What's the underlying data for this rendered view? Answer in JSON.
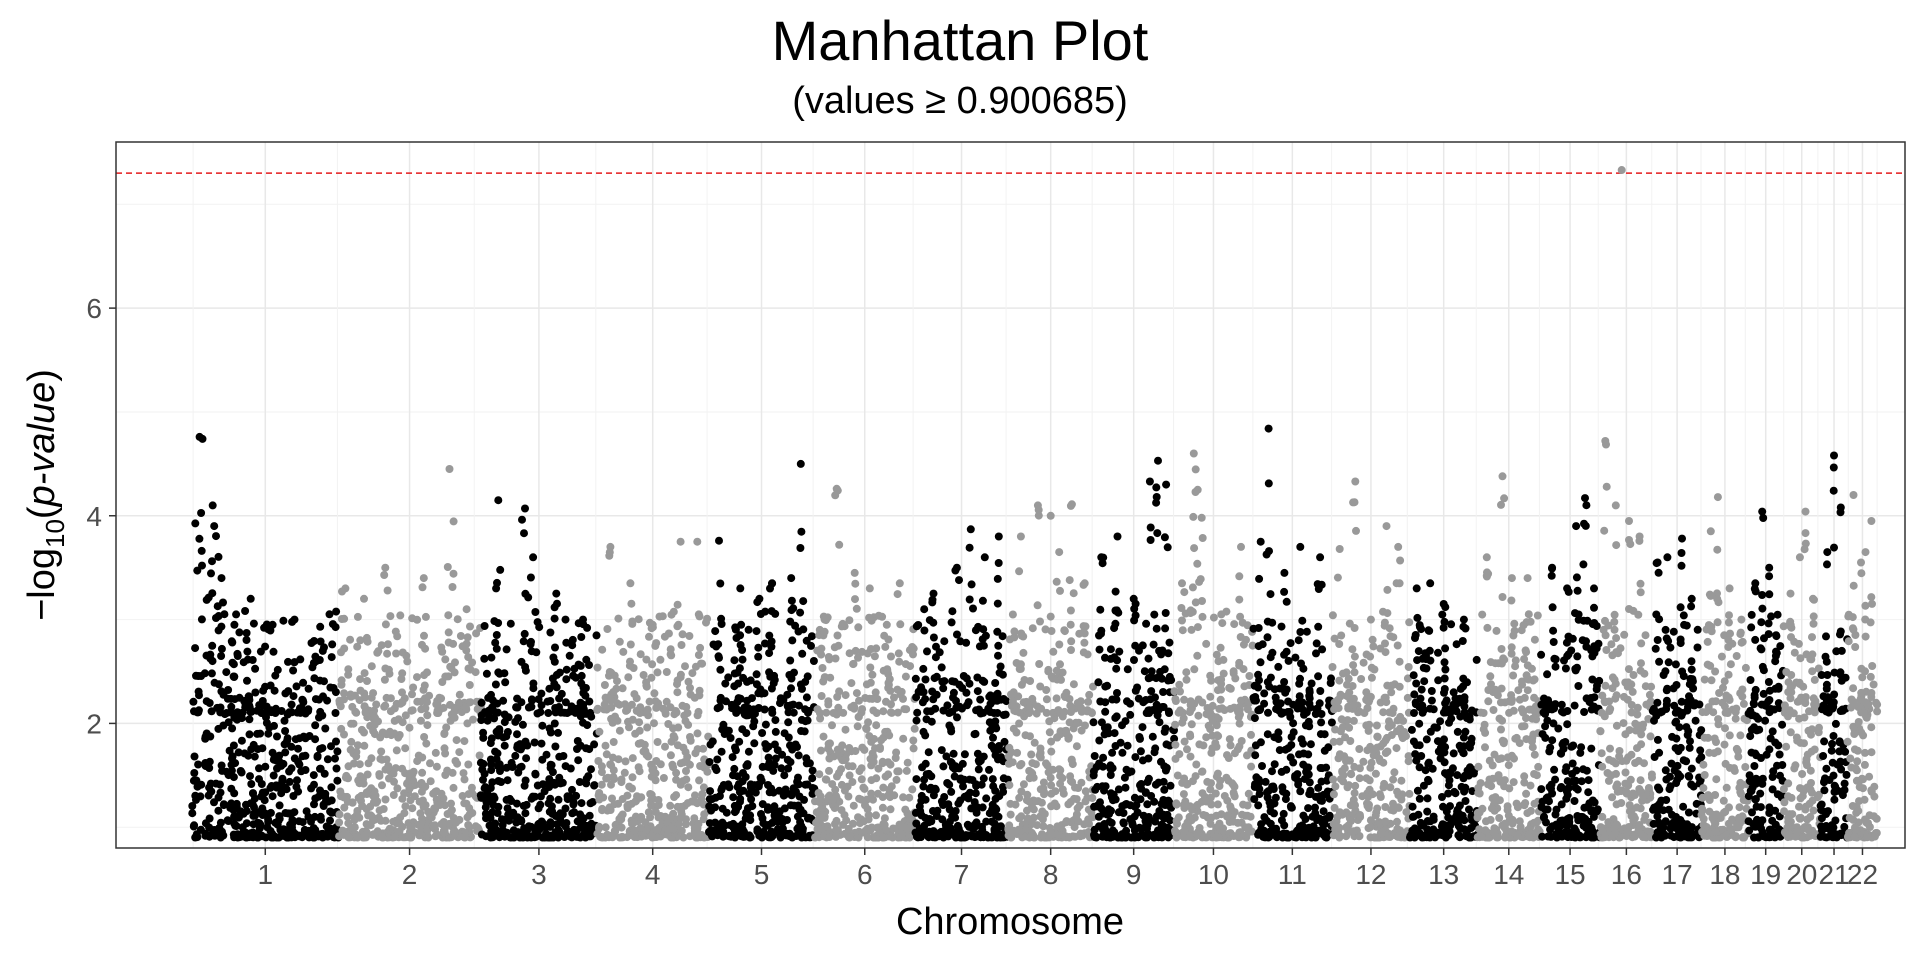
{
  "chart_data": {
    "type": "scatter",
    "title": "Manhattan Plot",
    "subtitle": "(values ≥ 0.900685)",
    "xlabel": "Chromosome",
    "ylabel": "−log10(p-value)",
    "ylabel_parts": {
      "prefix": "−log",
      "subscript": "10",
      "open": "(",
      "italic": "p-value",
      "close": ")"
    },
    "ylim": [
      0.8,
      7.6
    ],
    "yticks": [
      2,
      4,
      6
    ],
    "threshold": 7.3,
    "threshold_color": "#e41a1c",
    "colors": [
      "#000000",
      "#999999"
    ],
    "x_unit": "genome position (Mb)",
    "xlim": [
      -130,
      2920
    ],
    "grid": true,
    "legend": "none",
    "min_value": 0.900685,
    "chromosomes": [
      {
        "label": "1",
        "start": 0,
        "end": 249,
        "top": [
          [
            0.05,
            4.76
          ],
          [
            0.07,
            4.74
          ],
          [
            0.14,
            4.1
          ],
          [
            0.15,
            3.9
          ],
          [
            0.2,
            3.4
          ],
          [
            0.3,
            3.05
          ],
          [
            0.4,
            3.2
          ],
          [
            0.55,
            2.95
          ],
          [
            0.7,
            3.0
          ],
          [
            0.85,
            2.6
          ]
        ]
      },
      {
        "label": "2",
        "start": 249,
        "end": 492,
        "top": [
          [
            0.05,
            3.3
          ],
          [
            0.18,
            3.2
          ],
          [
            0.33,
            3.5
          ],
          [
            0.6,
            3.4
          ],
          [
            0.78,
            4.45
          ],
          [
            0.9,
            3.1
          ]
        ]
      },
      {
        "label": "3",
        "start": 492,
        "end": 690,
        "top": [
          [
            0.15,
            4.15
          ],
          [
            0.38,
            4.07
          ],
          [
            0.45,
            3.6
          ],
          [
            0.65,
            3.25
          ],
          [
            0.88,
            3.0
          ]
        ]
      },
      {
        "label": "4",
        "start": 690,
        "end": 880,
        "top": [
          [
            0.12,
            3.7
          ],
          [
            0.3,
            3.35
          ],
          [
            0.5,
            2.95
          ],
          [
            0.75,
            3.75
          ],
          [
            0.9,
            3.75
          ]
        ]
      },
      {
        "label": "5",
        "start": 880,
        "end": 1061,
        "top": [
          [
            0.1,
            3.76
          ],
          [
            0.3,
            3.3
          ],
          [
            0.48,
            3.2
          ],
          [
            0.6,
            3.35
          ],
          [
            0.78,
            3.4
          ],
          [
            0.87,
            4.5
          ]
        ]
      },
      {
        "label": "6",
        "start": 1061,
        "end": 1232,
        "top": [
          [
            0.1,
            3.0
          ],
          [
            0.22,
            4.26
          ],
          [
            0.4,
            3.45
          ],
          [
            0.55,
            3.3
          ],
          [
            0.72,
            2.95
          ],
          [
            0.85,
            3.35
          ]
        ]
      },
      {
        "label": "7",
        "start": 1232,
        "end": 1391,
        "top": [
          [
            0.1,
            3.1
          ],
          [
            0.2,
            3.25
          ],
          [
            0.45,
            3.5
          ],
          [
            0.6,
            3.87
          ],
          [
            0.75,
            3.6
          ],
          [
            0.9,
            3.8
          ]
        ]
      },
      {
        "label": "8",
        "start": 1391,
        "end": 1536,
        "top": [
          [
            0.15,
            3.8
          ],
          [
            0.35,
            4.1
          ],
          [
            0.5,
            4.0
          ],
          [
            0.6,
            3.65
          ],
          [
            0.75,
            4.11
          ],
          [
            0.9,
            3.35
          ]
        ]
      },
      {
        "label": "9",
        "start": 1536,
        "end": 1674,
        "top": [
          [
            0.1,
            3.6
          ],
          [
            0.3,
            3.8
          ],
          [
            0.5,
            3.2
          ],
          [
            0.7,
            4.33
          ],
          [
            0.8,
            4.53
          ],
          [
            0.9,
            4.3
          ]
        ]
      },
      {
        "label": "10",
        "start": 1674,
        "end": 1808,
        "top": [
          [
            0.1,
            3.35
          ],
          [
            0.25,
            4.6
          ],
          [
            0.3,
            4.25
          ],
          [
            0.35,
            3.98
          ],
          [
            0.6,
            3.05
          ],
          [
            0.85,
            3.7
          ]
        ]
      },
      {
        "label": "11",
        "start": 1808,
        "end": 1943,
        "top": [
          [
            0.1,
            3.75
          ],
          [
            0.2,
            4.84
          ],
          [
            0.4,
            3.45
          ],
          [
            0.6,
            3.7
          ],
          [
            0.85,
            3.6
          ]
        ]
      },
      {
        "label": "12",
        "start": 1943,
        "end": 2076,
        "top": [
          [
            0.1,
            3.68
          ],
          [
            0.3,
            4.33
          ],
          [
            0.5,
            3.0
          ],
          [
            0.7,
            3.9
          ],
          [
            0.85,
            3.7
          ]
        ]
      },
      {
        "label": "13",
        "start": 2076,
        "end": 2191,
        "top": [
          [
            0.1,
            3.3
          ],
          [
            0.3,
            3.35
          ],
          [
            0.5,
            3.15
          ],
          [
            0.8,
            3.0
          ]
        ]
      },
      {
        "label": "14",
        "start": 2191,
        "end": 2298,
        "top": [
          [
            0.15,
            3.6
          ],
          [
            0.4,
            4.38
          ],
          [
            0.55,
            3.4
          ],
          [
            0.8,
            3.4
          ]
        ]
      },
      {
        "label": "15",
        "start": 2298,
        "end": 2400,
        "top": [
          [
            0.2,
            3.5
          ],
          [
            0.45,
            3.3
          ],
          [
            0.6,
            3.9
          ],
          [
            0.75,
            4.17
          ],
          [
            0.9,
            3.3
          ]
        ]
      },
      {
        "label": "16",
        "start": 2400,
        "end": 2490,
        "top": [
          [
            0.1,
            4.72
          ],
          [
            0.3,
            4.1
          ],
          [
            0.55,
            3.95
          ],
          [
            0.75,
            3.8
          ]
        ]
      },
      {
        "label": "17",
        "start": 2490,
        "end": 2573,
        "top": [
          [
            0.1,
            3.55
          ],
          [
            0.3,
            3.6
          ],
          [
            0.6,
            3.78
          ],
          [
            0.8,
            3.2
          ]
        ]
      },
      {
        "label": "18",
        "start": 2573,
        "end": 2653,
        "top": [
          [
            0.2,
            3.85
          ],
          [
            0.35,
            4.18
          ],
          [
            0.6,
            3.3
          ],
          [
            0.85,
            3.0
          ]
        ]
      },
      {
        "label": "19",
        "start": 2653,
        "end": 2712,
        "top": [
          [
            0.2,
            3.35
          ],
          [
            0.4,
            4.04
          ],
          [
            0.6,
            3.5
          ],
          [
            0.8,
            2.85
          ]
        ]
      },
      {
        "label": "20",
        "start": 2712,
        "end": 2776,
        "top": [
          [
            0.2,
            3.25
          ],
          [
            0.45,
            3.6
          ],
          [
            0.6,
            4.04
          ],
          [
            0.8,
            3.2
          ]
        ]
      },
      {
        "label": "21",
        "start": 2776,
        "end": 2822,
        "top": [
          [
            0.25,
            3.65
          ],
          [
            0.5,
            4.58
          ],
          [
            0.75,
            4.08
          ]
        ]
      },
      {
        "label": "22",
        "start": 2822,
        "end": 2873,
        "top": [
          [
            0.2,
            4.2
          ],
          [
            0.45,
            3.55
          ],
          [
            0.6,
            3.65
          ],
          [
            0.8,
            3.95
          ]
        ]
      }
    ],
    "highlighted_points": [
      {
        "chromosome": "16",
        "x": 2437,
        "y": 7.33
      }
    ]
  }
}
